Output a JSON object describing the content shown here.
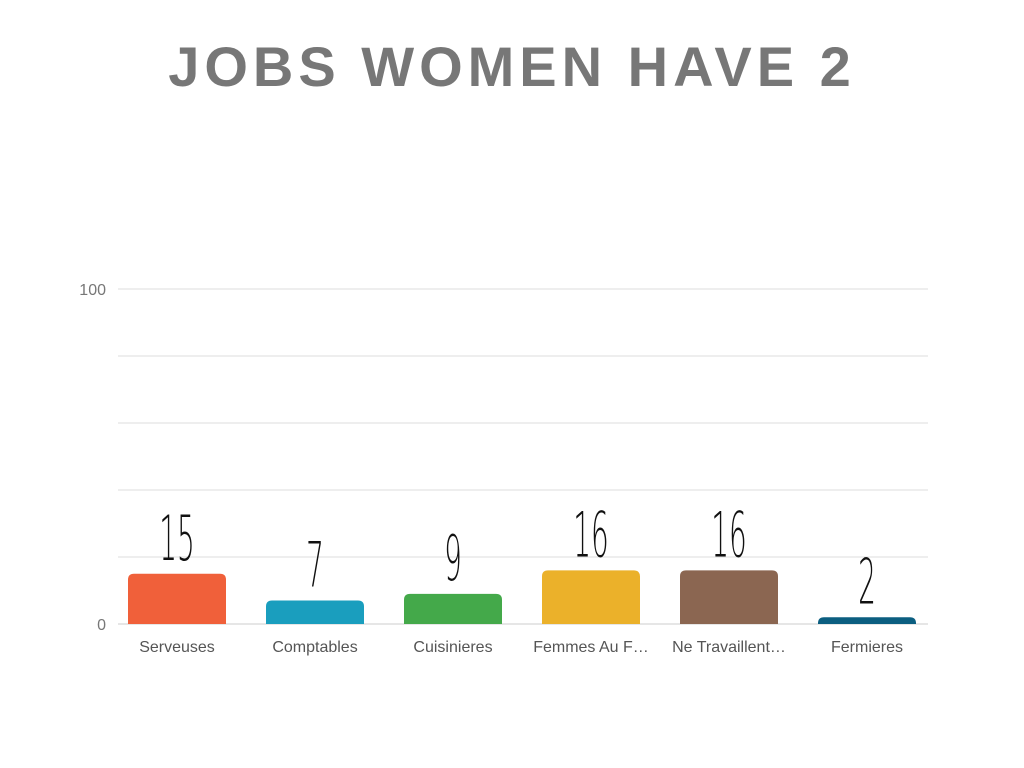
{
  "chart_data": {
    "type": "bar",
    "title": "JOBS WOMEN HAVE 2",
    "categories": [
      "Serveuses",
      "Comptables",
      "Cuisinieres",
      "Femmes Au F…",
      "Ne Travaillent…",
      "Fermieres"
    ],
    "values": [
      15,
      7,
      9,
      16,
      16,
      2
    ],
    "colors": [
      "#f0603a",
      "#1a9ebe",
      "#44a94a",
      "#ebb12a",
      "#8b6651",
      "#0b5e80"
    ],
    "ylim": [
      0,
      100
    ],
    "yticks": [
      0,
      100
    ],
    "minor_yticks": [
      20,
      40,
      60,
      80
    ],
    "grid": true
  }
}
